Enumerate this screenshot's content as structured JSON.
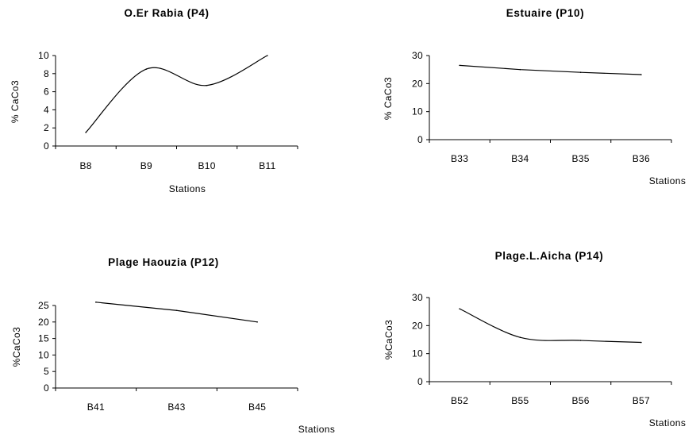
{
  "chart_data": [
    {
      "type": "line",
      "title": "O.Er Rabia (P4)",
      "xlabel": "Stations",
      "ylabel": "% CaCo3",
      "categories": [
        "B8",
        "B9",
        "B10",
        "B11"
      ],
      "series": [
        {
          "values": [
            1.5,
            8.5,
            6.7,
            10
          ]
        }
      ],
      "ylim": [
        0,
        10
      ],
      "yticks": [
        0,
        2,
        4,
        6,
        8,
        10
      ],
      "smooth": true,
      "grid": false,
      "legend": "none"
    },
    {
      "type": "line",
      "title": "Estuaire (P10)",
      "xlabel": "Stations",
      "ylabel": "% CaCo3",
      "categories": [
        "B33",
        "B34",
        "B35",
        "B36"
      ],
      "series": [
        {
          "values": [
            26.5,
            25,
            24,
            23.2
          ]
        }
      ],
      "ylim": [
        0,
        30
      ],
      "yticks": [
        0,
        10,
        20,
        30
      ],
      "smooth": false,
      "grid": false,
      "legend": "none"
    },
    {
      "type": "line",
      "title": "Plage Haouzia (P12)",
      "xlabel": "Stations",
      "ylabel": "%CaCo3",
      "categories": [
        "B41",
        "B43",
        "B45"
      ],
      "series": [
        {
          "values": [
            26,
            23.5,
            20
          ]
        }
      ],
      "ylim": [
        0,
        25
      ],
      "yticks": [
        0,
        5,
        10,
        15,
        20,
        25
      ],
      "smooth": false,
      "grid": false,
      "legend": "none"
    },
    {
      "type": "line",
      "title": "Plage.L.Aicha (P14)",
      "xlabel": "Stations",
      "ylabel": "%CaCo3",
      "categories": [
        "B52",
        "B55",
        "B56",
        "B57"
      ],
      "series": [
        {
          "values": [
            26,
            15.8,
            14.7,
            14
          ]
        }
      ],
      "ylim": [
        0,
        30
      ],
      "yticks": [
        0,
        10,
        20,
        30
      ],
      "smooth": true,
      "grid": false,
      "legend": "none"
    }
  ]
}
